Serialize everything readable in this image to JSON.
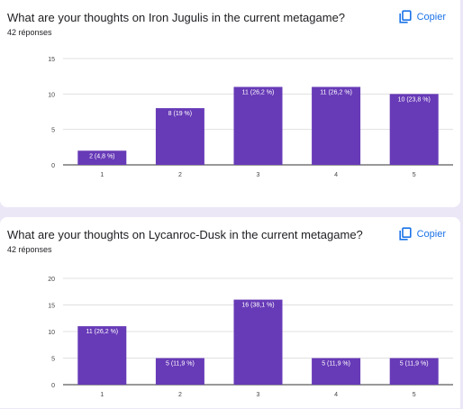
{
  "copy_label": "Copier",
  "questions": [
    {
      "title": "What are your thoughts on Iron Jugulis in the current metagame?",
      "responses": "42 réponses"
    },
    {
      "title": "What are your thoughts on Lycanroc-Dusk in the current metagame?",
      "responses": "42 réponses"
    }
  ],
  "colors": {
    "bar": "#673ab7",
    "copy": "#1a73e8",
    "grid": "#e0e0e0",
    "axis": "#333333"
  },
  "icons": {
    "copy": "copy-icon"
  },
  "chart_data": [
    {
      "type": "bar",
      "categories": [
        "1",
        "2",
        "3",
        "4",
        "5"
      ],
      "values": [
        2,
        8,
        11,
        11,
        10
      ],
      "data_labels": [
        "2 (4,8 %)",
        "8 (19 %)",
        "11 (26,2 %)",
        "11 (26,2 %)",
        "10 (23,8 %)"
      ],
      "yticks": [
        0,
        5,
        10,
        15
      ],
      "ylim": [
        0,
        15
      ],
      "grid": true,
      "legend": false
    },
    {
      "type": "bar",
      "categories": [
        "1",
        "2",
        "3",
        "4",
        "5"
      ],
      "values": [
        11,
        5,
        16,
        5,
        5
      ],
      "data_labels": [
        "11 (26,2 %)",
        "5 (11,9 %)",
        "16 (38,1 %)",
        "5 (11,9 %)",
        "5 (11,9 %)"
      ],
      "yticks": [
        0,
        5,
        10,
        15,
        20
      ],
      "ylim": [
        0,
        20
      ],
      "grid": true,
      "legend": false
    }
  ]
}
